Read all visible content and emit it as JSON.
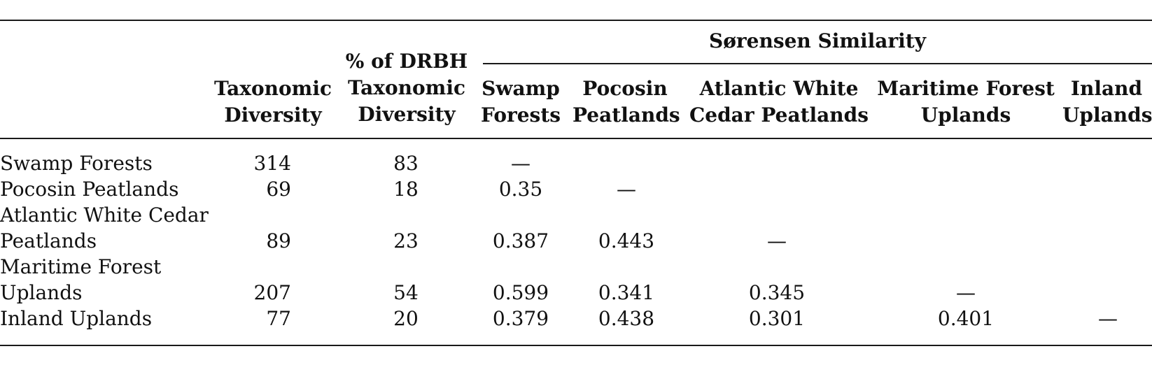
{
  "table": {
    "header": {
      "group_label": "Sørensen Similarity",
      "col_taxonomic": [
        "Taxonomic",
        "Diversity"
      ],
      "col_pct": [
        "% of DRBH",
        "Taxonomic",
        "Diversity"
      ],
      "col_swamp": [
        "Swamp",
        "Forests"
      ],
      "col_pocosin": [
        "Pocosin",
        "Peatlands"
      ],
      "col_awc": [
        "Atlantic White",
        "Cedar Peatlands"
      ],
      "col_maritime": [
        "Maritime Forest",
        "Uplands"
      ],
      "col_inland": [
        "Inland",
        "Uplands"
      ]
    },
    "rows": [
      {
        "label": [
          "Swamp Forests"
        ],
        "taxonomic": "314",
        "pct": "83",
        "swamp": "—",
        "pocosin": "",
        "awc": "",
        "maritime": "",
        "inland": ""
      },
      {
        "label": [
          "Pocosin Peatlands"
        ],
        "taxonomic": "69",
        "pct": "18",
        "swamp": "0.35",
        "pocosin": "—",
        "awc": "",
        "maritime": "",
        "inland": ""
      },
      {
        "label": [
          "Atlantic White Cedar",
          "Peatlands"
        ],
        "taxonomic": "89",
        "pct": "23",
        "swamp": "0.387",
        "pocosin": "0.443",
        "awc": "—",
        "maritime": "",
        "inland": ""
      },
      {
        "label": [
          "Maritime Forest",
          "Uplands"
        ],
        "taxonomic": "207",
        "pct": "54",
        "swamp": "0.599",
        "pocosin": "0.341",
        "awc": "0.345",
        "maritime": "—",
        "inland": ""
      },
      {
        "label": [
          "Inland Uplands"
        ],
        "taxonomic": "77",
        "pct": "20",
        "swamp": "0.379",
        "pocosin": "0.438",
        "awc": "0.301",
        "maritime": "0.401",
        "inland": "—"
      }
    ]
  }
}
